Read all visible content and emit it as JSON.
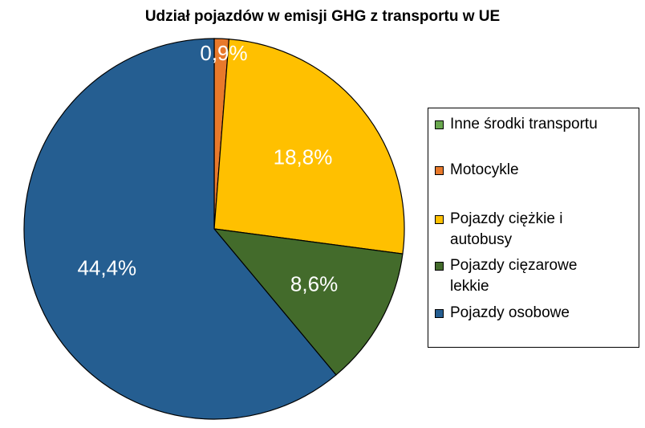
{
  "chart_data": {
    "type": "pie",
    "title": "Udział pojazdów w emisji GHG z transportu w UE",
    "slices": [
      {
        "name": "Inne środki transportu",
        "value": 0.0,
        "label": "",
        "color": "#6aa84f"
      },
      {
        "name": "Motocykle",
        "value": 0.9,
        "label": "0,9%",
        "color": "#e8792b"
      },
      {
        "name": "Pojazdy ciężkie i\nautobusy",
        "value": 18.8,
        "label": "18,8%",
        "color": "#ffc000"
      },
      {
        "name": "Pojazdy cięzarowe\nlekkie",
        "value": 8.6,
        "label": "8,6%",
        "color": "#436b2b"
      },
      {
        "name": "Pojazdy osobowe",
        "value": 44.4,
        "label": "44,4%",
        "color": "#255e91"
      }
    ],
    "legend": {
      "position": "right"
    }
  }
}
